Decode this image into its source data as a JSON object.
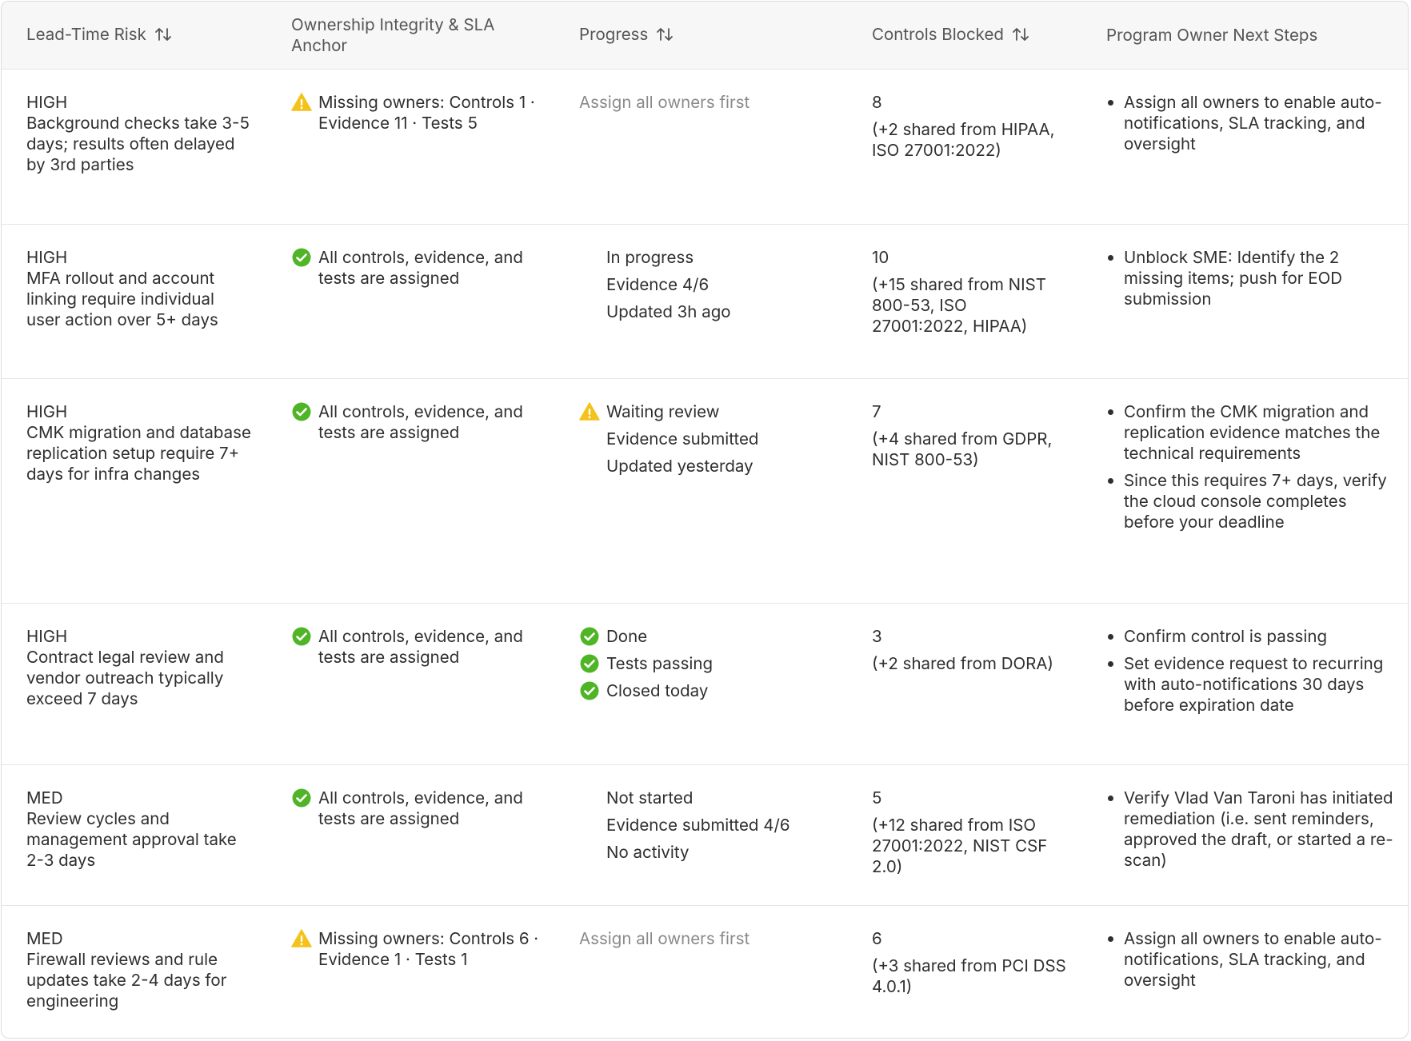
{
  "table": {
    "columns": [
      {
        "label": "Lead-Time Risk",
        "sortable": true
      },
      {
        "label": "Ownership Integrity & SLA Anchor",
        "sortable": false
      },
      {
        "label": "Progress",
        "sortable": true
      },
      {
        "label": "Controls Blocked",
        "sortable": true
      },
      {
        "label": "Program Owner Next Steps",
        "sortable": false
      }
    ],
    "rows": [
      {
        "risk": {
          "level": "HIGH",
          "text": "Background checks take 3-5 days; results often delayed by 3rd parties"
        },
        "ownership": {
          "icon": "warning",
          "text": "Missing owners: Controls 1 · Evidence 11 · Tests 5"
        },
        "progress": {
          "muted": true,
          "lines": [
            {
              "text": "Assign all owners first"
            }
          ]
        },
        "blocked": {
          "count": 8,
          "shared": "(+2 shared from HIPAA, ISO 27001:2022)"
        },
        "steps": [
          "Assign all owners to enable auto-notifications, SLA tracking, and oversight"
        ]
      },
      {
        "risk": {
          "level": "HIGH",
          "text": "MFA rollout and account linking require individual user action over 5+ days"
        },
        "ownership": {
          "icon": "check",
          "text": "All controls, evidence, and tests are assigned"
        },
        "progress": {
          "muted": false,
          "lines": [
            {
              "text": "In progress"
            },
            {
              "text": "Evidence 4/6"
            },
            {
              "text": "Updated 3h ago"
            }
          ]
        },
        "blocked": {
          "count": 10,
          "shared": "(+15 shared from NIST 800-53, ISO 27001:2022, HIPAA)"
        },
        "steps": [
          "Unblock SME: Identify the 2 missing items; push for EOD submission"
        ]
      },
      {
        "risk": {
          "level": "HIGH",
          "text": "CMK migration and database replication setup require 7+ days for infra changes"
        },
        "ownership": {
          "icon": "check",
          "text": "All controls, evidence, and tests are assigned"
        },
        "progress": {
          "muted": false,
          "lines": [
            {
              "text": "Waiting review",
              "icon": "warning"
            },
            {
              "text": "Evidence submitted"
            },
            {
              "text": "Updated yesterday"
            }
          ]
        },
        "blocked": {
          "count": 7,
          "shared": "(+4 shared from GDPR, NIST 800-53)"
        },
        "steps": [
          "Confirm the CMK migration and replication evidence matches the technical requirements",
          "Since this requires 7+ days, verify the cloud console completes before your deadline"
        ]
      },
      {
        "risk": {
          "level": "HIGH",
          "text": "Contract legal review and vendor outreach typically exceed 7 days"
        },
        "ownership": {
          "icon": "check",
          "text": "All controls, evidence, and tests are assigned"
        },
        "progress": {
          "muted": false,
          "lines": [
            {
              "text": "Done",
              "icon": "check"
            },
            {
              "text": "Tests passing",
              "icon": "check"
            },
            {
              "text": "Closed today",
              "icon": "check"
            }
          ]
        },
        "blocked": {
          "count": 3,
          "shared": "(+2 shared from DORA)"
        },
        "steps": [
          "Confirm control is passing",
          "Set evidence request to recurring with auto-notifications 30 days before expiration date"
        ]
      },
      {
        "risk": {
          "level": "MED",
          "text": "Review cycles and management approval take 2-3 days"
        },
        "ownership": {
          "icon": "check",
          "text": "All controls, evidence, and tests are assigned"
        },
        "progress": {
          "muted": false,
          "lines": [
            {
              "text": "Not started"
            },
            {
              "text": "Evidence submitted 4/6"
            },
            {
              "text": "No activity"
            }
          ]
        },
        "blocked": {
          "count": 5,
          "shared": "(+12 shared from ISO 27001:2022, NIST CSF 2.0)"
        },
        "steps": [
          "Verify Vlad Van Taroni has initiated remediation (i.e. sent reminders, approved the draft, or started a re-scan)"
        ]
      },
      {
        "risk": {
          "level": "MED",
          "text": "Firewall reviews and rule updates take 2-4 days for engineering"
        },
        "ownership": {
          "icon": "warning",
          "text": "Missing owners: Controls 6 · Evidence 1 · Tests 1"
        },
        "progress": {
          "muted": true,
          "lines": [
            {
              "text": "Assign all owners first"
            }
          ]
        },
        "blocked": {
          "count": 6,
          "shared": "(+3 shared from PCI DSS 4.0.1)"
        },
        "steps": [
          "Assign all owners to enable auto-notifications, SLA tracking, and oversight"
        ]
      }
    ]
  }
}
